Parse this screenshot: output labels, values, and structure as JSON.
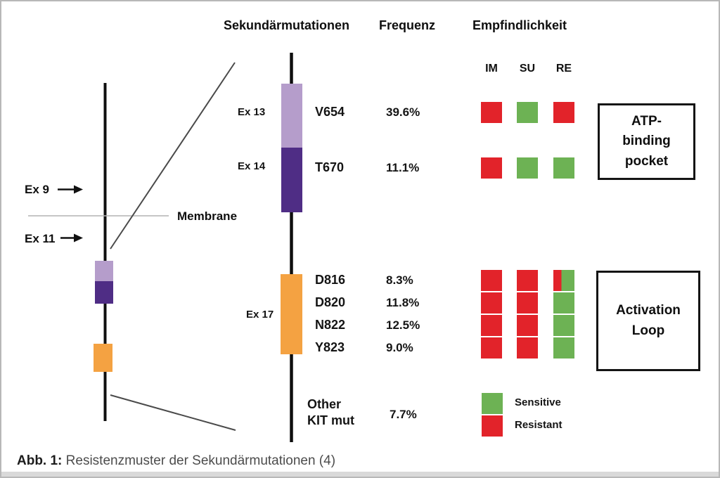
{
  "header": {
    "mutations": "Sekundärmutationen",
    "frequency": "Frequenz",
    "sensitivity": "Empfindlichkeit",
    "drugs": [
      "IM",
      "SU",
      "RE"
    ]
  },
  "receptor": {
    "ex9": "Ex 9",
    "ex11": "Ex 11",
    "membrane": "Membrane"
  },
  "exons": {
    "ex13": "Ex 13",
    "ex14": "Ex 14",
    "ex17": "Ex 17"
  },
  "rows": [
    {
      "mutation": "V654",
      "frequency": "39.6%",
      "sensitivity": {
        "IM": "resistant",
        "SU": "sensitive",
        "RE": "resistant"
      }
    },
    {
      "mutation": "T670",
      "frequency": "11.1%",
      "sensitivity": {
        "IM": "resistant",
        "SU": "sensitive",
        "RE": "sensitive"
      }
    },
    {
      "mutation": "D816",
      "frequency": "8.3%",
      "sensitivity": {
        "IM": "resistant",
        "SU": "resistant",
        "RE": "mixed"
      }
    },
    {
      "mutation": "D820",
      "frequency": "11.8%",
      "sensitivity": {
        "IM": "resistant",
        "SU": "resistant",
        "RE": "sensitive"
      }
    },
    {
      "mutation": "N822",
      "frequency": "12.5%",
      "sensitivity": {
        "IM": "resistant",
        "SU": "resistant",
        "RE": "sensitive"
      }
    },
    {
      "mutation": "Y823",
      "frequency": "9.0%",
      "sensitivity": {
        "IM": "resistant",
        "SU": "resistant",
        "RE": "sensitive"
      }
    },
    {
      "mutation": "Other KIT mut",
      "frequency": "7.7%",
      "sensitivity": null
    }
  ],
  "legend": {
    "sensitive": "Sensitive",
    "resistant": "Resistant"
  },
  "boxes": {
    "atp": "ATP-binding pocket",
    "activation": "Activation Loop"
  },
  "caption": {
    "label": "Abb. 1:",
    "text": "Resistenzmuster der Sekundärmutationen (4)"
  },
  "colors": {
    "resistant": "#e2232a",
    "sensitive": "#6db254",
    "exon13": "#b59dcb",
    "exon14": "#4f2d85",
    "exon17": "#f4a242"
  }
}
